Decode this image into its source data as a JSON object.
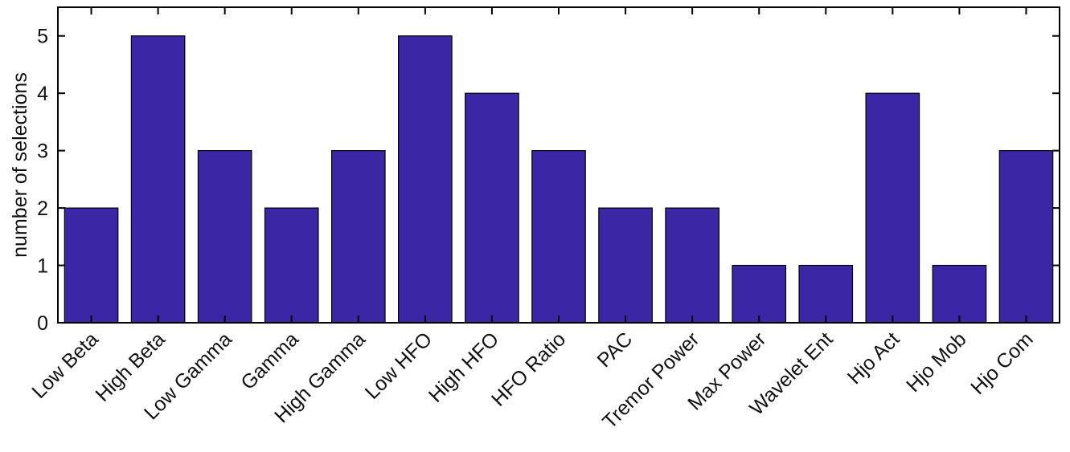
{
  "chart_data": {
    "type": "bar",
    "title": "",
    "xlabel": "",
    "ylabel": "number of selections",
    "categories": [
      "Low Beta",
      "High Beta",
      "Low Gamma",
      "Gamma",
      "High Gamma",
      "Low HFO",
      "High HFO",
      "HFO Ratio",
      "PAC",
      "Tremor Power",
      "Max Power",
      "Wavelet Ent",
      "Hjo Act",
      "Hjo Mob",
      "Hjo Com"
    ],
    "values": [
      2,
      5,
      3,
      2,
      3,
      5,
      4,
      3,
      2,
      2,
      1,
      1,
      4,
      1,
      3
    ],
    "ylim": [
      0,
      5.5
    ],
    "yticks": [
      0,
      1,
      2,
      3,
      4,
      5
    ],
    "grid": false,
    "legend": "none",
    "bar_color": "#3B26A6",
    "axis_color": "#000000"
  }
}
